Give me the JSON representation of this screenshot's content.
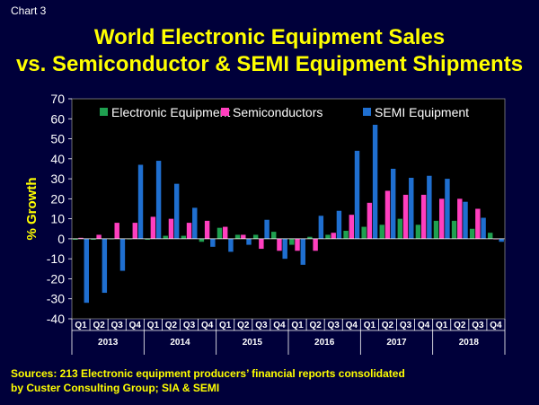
{
  "chart_label": "Chart 3",
  "title_line1": "World Electronic Equipment Sales",
  "title_line2": "vs. Semiconductor & SEMI Equipment Shipments",
  "sources_line1": "Sources: 213 Electronic equipment producers’ financial reports consolidated",
  "sources_line2": "by Custer Consulting Group; SIA & SEMI",
  "chart_data": {
    "type": "bar",
    "ylabel": "% Growth",
    "ylim": [
      -40,
      70
    ],
    "yticks": [
      -40,
      -30,
      -20,
      -10,
      0,
      10,
      20,
      30,
      40,
      50,
      60,
      70
    ],
    "grid": false,
    "legend_position": "top",
    "quarters": [
      "Q1",
      "Q2",
      "Q3",
      "Q4",
      "Q1",
      "Q2",
      "Q3",
      "Q4",
      "Q1",
      "Q2",
      "Q3",
      "Q4",
      "Q1",
      "Q2",
      "Q3",
      "Q4",
      "Q1",
      "Q2",
      "Q3",
      "Q4",
      "Q1",
      "Q2",
      "Q3",
      "Q4"
    ],
    "years": [
      "2013",
      "2014",
      "2015",
      "2016",
      "2017",
      "2018"
    ],
    "series": [
      {
        "name": "Electronic Equipment",
        "color": "#1fa050",
        "values": [
          -0.5,
          -0.5,
          0,
          0,
          -0.5,
          1.5,
          1.5,
          -1.5,
          5.5,
          2,
          2,
          3.5,
          -3,
          1,
          2,
          4,
          6,
          7,
          10,
          7,
          9,
          9,
          5,
          3
        ]
      },
      {
        "name": "Semiconductors",
        "color": "#ff3fbf",
        "values": [
          0.5,
          2,
          8,
          8,
          11,
          10,
          8,
          9,
          6,
          2,
          -5,
          -6,
          -6,
          -6,
          3,
          12,
          18,
          24,
          22,
          22,
          20,
          20,
          15,
          0
        ]
      },
      {
        "name": "SEMI Equipment",
        "color": "#1f6fd0",
        "values": [
          -32,
          -27,
          -16,
          37,
          39,
          27.5,
          15.5,
          -4,
          -6.5,
          -3,
          9.5,
          -10,
          -13,
          11.5,
          14,
          44,
          57,
          35,
          30.5,
          31.5,
          30,
          18.5,
          10.5,
          -1.5
        ]
      }
    ]
  }
}
